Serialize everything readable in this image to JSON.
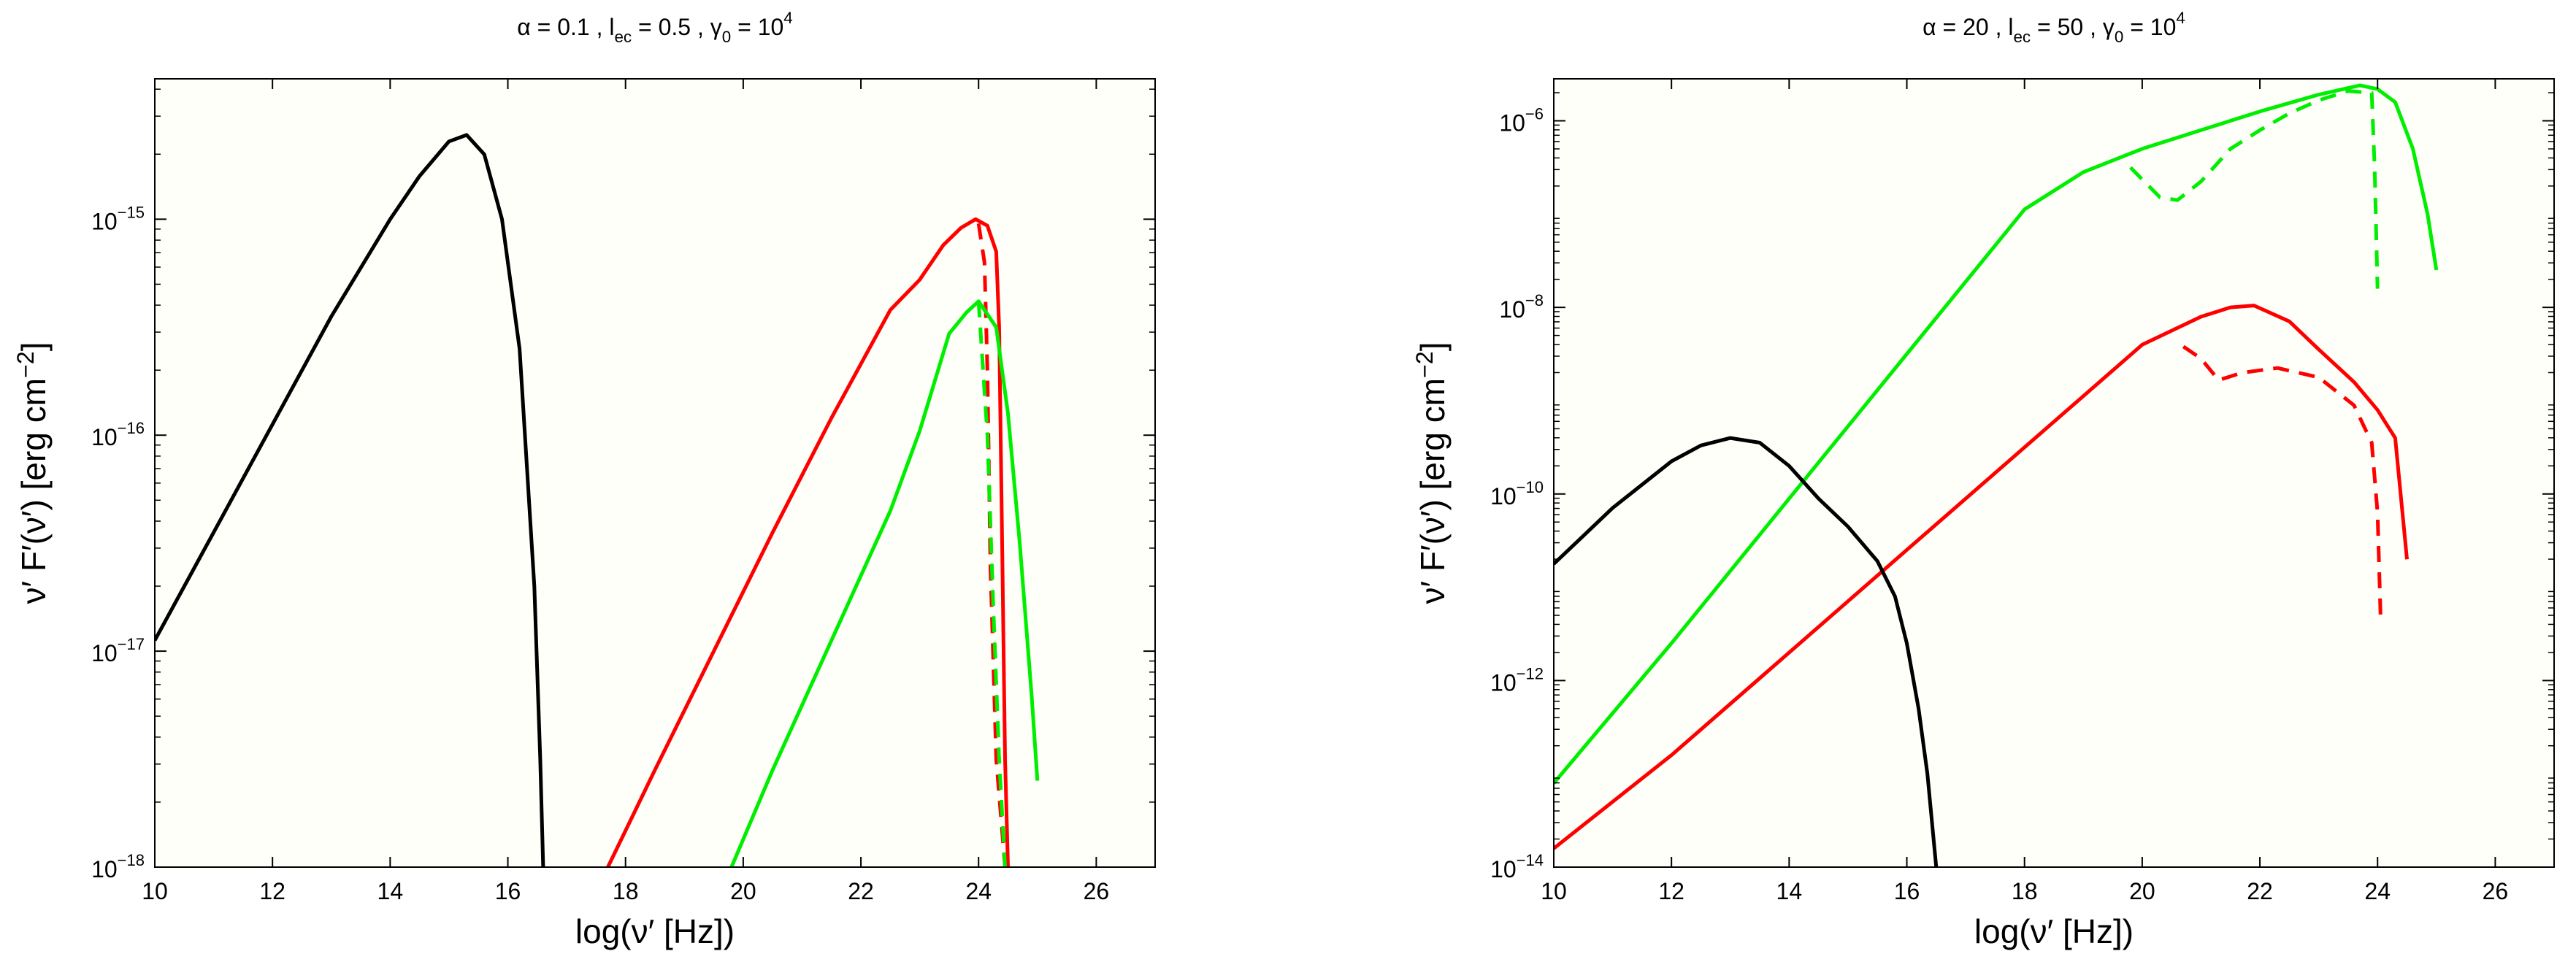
{
  "figure": {
    "panel_bg": "#fffffa",
    "frame_color": "#000000"
  },
  "chart_data": [
    {
      "type": "line",
      "title": {
        "parts": [
          {
            "t": "α = 0.1 , l"
          },
          {
            "t": "ec",
            "s": "sub"
          },
          {
            "t": " = 0.5 , γ"
          },
          {
            "t": "0",
            "s": "sub"
          },
          {
            "t": " = 10"
          },
          {
            "t": "4",
            "s": "sup"
          }
        ]
      },
      "xlabel": "log(ν′ [Hz])",
      "ylabel": {
        "parts": [
          {
            "t": "ν′ F′(ν′) [erg cm"
          },
          {
            "t": "−2",
            "s": "sup"
          },
          {
            "t": "]"
          }
        ]
      },
      "xlim": [
        10,
        27
      ],
      "ylim_log10": [
        -18,
        -14.35
      ],
      "yscale": "log",
      "xticks": [
        10,
        12,
        14,
        16,
        18,
        20,
        22,
        24,
        26
      ],
      "xtick_labels": [
        "10",
        "12",
        "14",
        "16",
        "18",
        "20",
        "22",
        "24",
        "26"
      ],
      "yticks_log10": [
        -18,
        -17,
        -16,
        -15
      ],
      "ytick_labels": [
        {
          "base": "10",
          "exp": "−18"
        },
        {
          "base": "10",
          "exp": "−17"
        },
        {
          "base": "10",
          "exp": "−16"
        },
        {
          "base": "10",
          "exp": "−15"
        }
      ],
      "series": [
        {
          "color": "#000000",
          "dash": false,
          "points_log10": [
            [
              10,
              -16.95
            ],
            [
              11,
              -16.45
            ],
            [
              12,
              -15.95
            ],
            [
              13,
              -15.45
            ],
            [
              14,
              -15.0
            ],
            [
              14.5,
              -14.8
            ],
            [
              15.0,
              -14.64
            ],
            [
              15.3,
              -14.61
            ],
            [
              15.6,
              -14.7
            ],
            [
              15.9,
              -15.0
            ],
            [
              16.2,
              -15.6
            ],
            [
              16.45,
              -16.7
            ],
            [
              16.55,
              -17.5
            ],
            [
              16.6,
              -18.0
            ]
          ]
        },
        {
          "color": "#ff0000",
          "dash": false,
          "points_log10": [
            [
              17.7,
              -18.0
            ],
            [
              18.5,
              -17.55
            ],
            [
              19.5,
              -17.0
            ],
            [
              20.5,
              -16.45
            ],
            [
              21.5,
              -15.92
            ],
            [
              22.5,
              -15.42
            ],
            [
              23.0,
              -15.28
            ],
            [
              23.4,
              -15.12
            ],
            [
              23.7,
              -15.04
            ],
            [
              23.95,
              -15.0
            ],
            [
              24.15,
              -15.03
            ],
            [
              24.3,
              -15.15
            ],
            [
              24.35,
              -15.5
            ],
            [
              24.4,
              -16.5
            ],
            [
              24.45,
              -17.5
            ],
            [
              24.5,
              -18.0
            ]
          ]
        },
        {
          "color": "#ff0000",
          "dash": true,
          "points_log10": [
            [
              24.0,
              -15.02
            ],
            [
              24.1,
              -15.2
            ],
            [
              24.15,
              -15.7
            ],
            [
              24.2,
              -16.6
            ],
            [
              24.3,
              -17.5
            ],
            [
              24.45,
              -18.0
            ]
          ]
        },
        {
          "color": "#00ee00",
          "dash": false,
          "points_log10": [
            [
              19.8,
              -18.0
            ],
            [
              20.5,
              -17.55
            ],
            [
              21.5,
              -16.95
            ],
            [
              22.5,
              -16.35
            ],
            [
              23.0,
              -15.98
            ],
            [
              23.5,
              -15.53
            ],
            [
              23.8,
              -15.43
            ],
            [
              24.0,
              -15.38
            ],
            [
              24.3,
              -15.5
            ],
            [
              24.5,
              -15.9
            ],
            [
              24.7,
              -16.5
            ],
            [
              24.9,
              -17.2
            ],
            [
              25.0,
              -17.6
            ]
          ]
        },
        {
          "color": "#00ee00",
          "dash": true,
          "points_log10": [
            [
              24.0,
              -15.38
            ],
            [
              24.15,
              -16.0
            ],
            [
              24.25,
              -16.8
            ],
            [
              24.35,
              -17.5
            ],
            [
              24.45,
              -18.0
            ]
          ]
        }
      ]
    },
    {
      "type": "line",
      "title": {
        "parts": [
          {
            "t": "α = 20 , l"
          },
          {
            "t": "ec",
            "s": "sub"
          },
          {
            "t": " = 50 , γ"
          },
          {
            "t": "0",
            "s": "sub"
          },
          {
            "t": " = 10"
          },
          {
            "t": "4",
            "s": "sup"
          }
        ]
      },
      "xlabel": "log(ν′ [Hz])",
      "ylabel": {
        "parts": [
          {
            "t": "ν′ F′(ν′) [erg cm"
          },
          {
            "t": "−2",
            "s": "sup"
          },
          {
            "t": "]"
          }
        ]
      },
      "xlim": [
        10,
        27
      ],
      "ylim_log10": [
        -14,
        -5.55
      ],
      "yscale": "log",
      "xticks": [
        10,
        12,
        14,
        16,
        18,
        20,
        22,
        24,
        26
      ],
      "xtick_labels": [
        "10",
        "12",
        "14",
        "16",
        "18",
        "20",
        "22",
        "24",
        "26"
      ],
      "yticks_log10": [
        -14,
        -12,
        -10,
        -8,
        -6
      ],
      "ytick_labels": [
        {
          "base": "10",
          "exp": "−14"
        },
        {
          "base": "10",
          "exp": "−12"
        },
        {
          "base": "10",
          "exp": "−10"
        },
        {
          "base": "10",
          "exp": "−8"
        },
        {
          "base": "10",
          "exp": "−6"
        }
      ],
      "series": [
        {
          "color": "#00ee00",
          "dash": false,
          "points_log10": [
            [
              10,
              -13.1
            ],
            [
              12,
              -11.6
            ],
            [
              14,
              -10.05
            ],
            [
              16,
              -8.5
            ],
            [
              18,
              -6.95
            ],
            [
              19.0,
              -6.55
            ],
            [
              20,
              -6.3
            ],
            [
              21,
              -6.1
            ],
            [
              22,
              -5.9
            ],
            [
              23,
              -5.72
            ],
            [
              23.7,
              -5.62
            ],
            [
              24.0,
              -5.66
            ],
            [
              24.3,
              -5.8
            ],
            [
              24.6,
              -6.3
            ],
            [
              24.85,
              -7.0
            ],
            [
              25.0,
              -7.6
            ]
          ]
        },
        {
          "color": "#00ee00",
          "dash": true,
          "points_log10": [
            [
              19.8,
              -6.5
            ],
            [
              20.3,
              -6.82
            ],
            [
              20.6,
              -6.85
            ],
            [
              21.0,
              -6.65
            ],
            [
              21.5,
              -6.3
            ],
            [
              22.0,
              -6.1
            ],
            [
              22.5,
              -5.92
            ],
            [
              23.0,
              -5.78
            ],
            [
              23.5,
              -5.68
            ],
            [
              23.9,
              -5.7
            ],
            [
              23.95,
              -6.5
            ],
            [
              24.0,
              -7.8
            ]
          ]
        },
        {
          "color": "#ff0000",
          "dash": false,
          "points_log10": [
            [
              10,
              -13.8
            ],
            [
              12,
              -12.8
            ],
            [
              14,
              -11.7
            ],
            [
              16,
              -10.6
            ],
            [
              18,
              -9.5
            ],
            [
              19,
              -8.95
            ],
            [
              20,
              -8.4
            ],
            [
              21,
              -8.1
            ],
            [
              21.5,
              -8.0
            ],
            [
              21.9,
              -7.98
            ],
            [
              22.5,
              -8.15
            ],
            [
              23,
              -8.45
            ],
            [
              23.6,
              -8.8
            ],
            [
              24.0,
              -9.1
            ],
            [
              24.3,
              -9.4
            ],
            [
              24.5,
              -10.7
            ]
          ]
        },
        {
          "color": "#ff0000",
          "dash": true,
          "points_log10": [
            [
              20.7,
              -8.42
            ],
            [
              21.0,
              -8.55
            ],
            [
              21.3,
              -8.78
            ],
            [
              21.7,
              -8.7
            ],
            [
              22.3,
              -8.65
            ],
            [
              23.0,
              -8.75
            ],
            [
              23.6,
              -9.05
            ],
            [
              23.9,
              -9.45
            ],
            [
              24.0,
              -10.2
            ],
            [
              24.05,
              -11.3
            ]
          ]
        },
        {
          "color": "#000000",
          "dash": false,
          "points_log10": [
            [
              10,
              -10.75
            ],
            [
              10.5,
              -10.45
            ],
            [
              11,
              -10.15
            ],
            [
              11.5,
              -9.9
            ],
            [
              12.0,
              -9.65
            ],
            [
              12.5,
              -9.48
            ],
            [
              13.0,
              -9.4
            ],
            [
              13.5,
              -9.45
            ],
            [
              14.0,
              -9.7
            ],
            [
              14.5,
              -10.05
            ],
            [
              15.0,
              -10.35
            ],
            [
              15.5,
              -10.72
            ],
            [
              15.8,
              -11.1
            ],
            [
              16.0,
              -11.6
            ],
            [
              16.2,
              -12.3
            ],
            [
              16.35,
              -13.0
            ],
            [
              16.5,
              -14.0
            ]
          ]
        }
      ]
    }
  ]
}
